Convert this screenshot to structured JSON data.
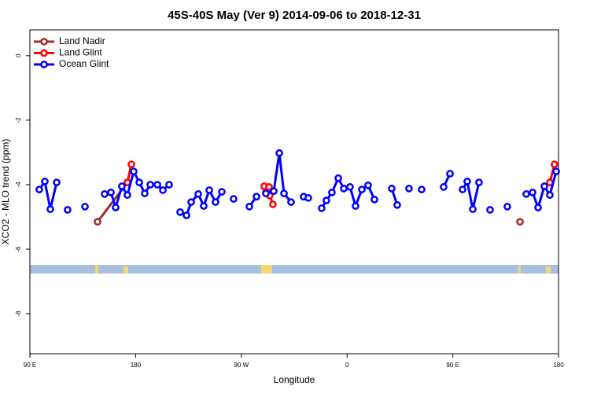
{
  "chart_data": {
    "type": "line",
    "title": "45S-40S May (Ver 9)   2014-09-06 to 2018-12-31",
    "x_label": "Longitude",
    "y_label": "XCO2 - MLO trend (ppm)",
    "xlim": [
      90,
      540
    ],
    "ylim": [
      -9.24,
      0.8
    ],
    "xticks": [
      {
        "value": 90,
        "label": "90 E"
      },
      180,
      {
        "value": 270,
        "label": "90 W"
      },
      {
        "value": 360,
        "label": "0"
      },
      {
        "value": 450,
        "label": "90 E"
      },
      {
        "value": 540,
        "label": "180"
      }
    ],
    "yticks": [
      0,
      -2,
      -4,
      -6,
      -8
    ],
    "legend": "top-left",
    "series": [
      {
        "name": "Land Nadir",
        "color": "#a52a2a",
        "x": [
          147.6,
          173.0,
          null,
          507.2
        ],
        "values": [
          -5.15,
          -3.93,
          null,
          -5.15
        ]
      },
      {
        "name": "Land Glint",
        "color": "#ff0000",
        "x": [
          173.0,
          176.4,
          null,
          289.5,
          290.9,
          293.6,
          294.2,
          296.9,
          null,
          532.6,
          536.6
        ],
        "values": [
          -3.93,
          -3.37,
          null,
          -4.05,
          -4.24,
          -4.07,
          -4.34,
          -4.61,
          null,
          -3.93,
          -3.37
        ]
      },
      {
        "name": "Ocean Glint",
        "color": "#0000ff",
        "x": [
          98.0,
          102.7,
          107.4,
          112.8,
          null,
          122.1,
          null,
          136.9,
          null,
          153.6,
          159.0,
          163.0,
          168.3,
          173.0,
          178.4,
          183.1,
          187.8,
          192.5,
          198.5,
          203.2,
          208.5,
          null,
          217.9,
          223.3,
          227.3,
          233.3,
          238.0,
          242.7,
          248.0,
          253.4,
          null,
          263.4,
          null,
          276.8,
          282.9,
          null,
          290.9,
          297.6,
          302.3,
          306.3,
          312.3,
          null,
          323.0,
          327.0,
          null,
          338.4,
          342.4,
          347.1,
          352.5,
          357.2,
          362.5,
          367.2,
          372.6,
          377.9,
          383.3,
          null,
          398.0,
          402.7,
          null,
          412.7,
          null,
          423.5,
          null,
          442.2,
          447.6,
          null,
          458.3,
          462.3,
          467.0,
          472.3,
          null,
          481.7,
          null,
          496.4,
          null,
          512.5,
          517.9,
          522.6,
          527.9,
          532.6,
          538.0
        ],
        "values": [
          -4.15,
          -3.9,
          -4.76,
          -3.93,
          null,
          -4.78,
          null,
          -4.68,
          null,
          -4.29,
          -4.24,
          -4.71,
          -4.05,
          -4.32,
          -3.59,
          -3.93,
          -4.27,
          -4.0,
          -4.0,
          -4.17,
          -4.0,
          null,
          -4.85,
          -4.95,
          -4.54,
          -4.29,
          -4.66,
          -4.17,
          -4.54,
          -4.22,
          null,
          -4.44,
          null,
          -4.68,
          -4.37,
          null,
          -4.27,
          -4.2,
          -3.02,
          -4.27,
          -4.54,
          null,
          -4.37,
          -4.41,
          null,
          -4.73,
          -4.49,
          -4.24,
          -3.8,
          -4.12,
          -4.07,
          -4.66,
          -4.15,
          -4.02,
          -4.46,
          null,
          -4.12,
          -4.63,
          null,
          -4.12,
          null,
          -4.15,
          null,
          -4.07,
          -3.66,
          null,
          -4.15,
          -3.9,
          -4.76,
          -3.93,
          null,
          -4.78,
          null,
          -4.68,
          null,
          -4.29,
          -4.24,
          -4.71,
          -4.05,
          -4.32,
          -3.59
        ]
      }
    ]
  }
}
